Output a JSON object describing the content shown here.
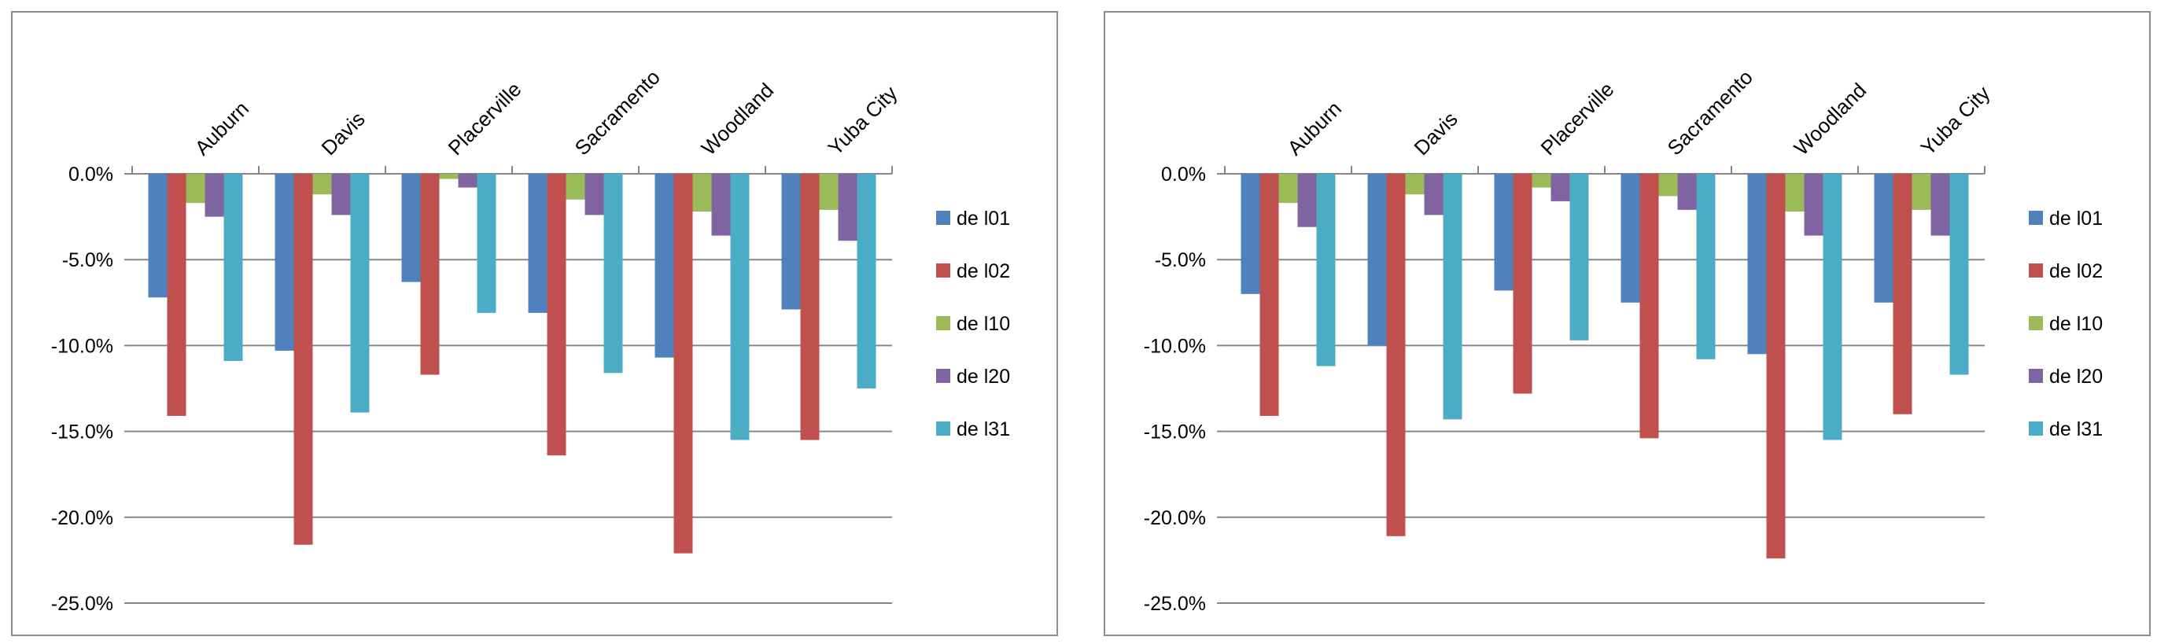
{
  "chart_data": [
    {
      "type": "bar",
      "categories": [
        "Auburn",
        "Davis",
        "Placerville",
        "Sacramento",
        "Woodland",
        "Yuba City"
      ],
      "ylim": [
        -25,
        0
      ],
      "yticks": [
        "0.0%",
        "-5.0%",
        "-10.0%",
        "-15.0%",
        "-20.0%",
        "-25.0%"
      ],
      "category_axis": "top",
      "legend_position": "right",
      "series": [
        {
          "name": "del01",
          "label": "de l01",
          "color": "#4f81bd",
          "values": [
            -7.2,
            -10.3,
            -6.3,
            -8.1,
            -10.7,
            -7.9
          ]
        },
        {
          "name": "del02",
          "label": "de l02",
          "color": "#c0504d",
          "values": [
            -14.1,
            -21.6,
            -11.7,
            -16.4,
            -22.1,
            -15.5
          ]
        },
        {
          "name": "del10",
          "label": "de l10",
          "color": "#9bbb59",
          "values": [
            -1.7,
            -1.2,
            -0.3,
            -1.5,
            -2.2,
            -2.1
          ]
        },
        {
          "name": "del20",
          "label": "de l20",
          "color": "#8064a2",
          "values": [
            -2.5,
            -2.4,
            -0.8,
            -2.4,
            -3.6,
            -3.9
          ]
        },
        {
          "name": "del31",
          "label": "de l31",
          "color": "#4bacc6",
          "values": [
            -10.9,
            -13.9,
            -8.1,
            -11.6,
            -15.5,
            -12.5
          ]
        }
      ]
    },
    {
      "type": "bar",
      "categories": [
        "Auburn",
        "Davis",
        "Placerville",
        "Sacramento",
        "Woodland",
        "Yuba City"
      ],
      "ylim": [
        -25,
        0
      ],
      "yticks": [
        "0.0%",
        "-5.0%",
        "-10.0%",
        "-15.0%",
        "-20.0%",
        "-25.0%"
      ],
      "category_axis": "top",
      "legend_position": "right",
      "series": [
        {
          "name": "del01",
          "label": "de l01",
          "color": "#4f81bd",
          "values": [
            -7.0,
            -10.0,
            -6.8,
            -7.5,
            -10.5,
            -7.5
          ]
        },
        {
          "name": "del02",
          "label": "de l02",
          "color": "#c0504d",
          "values": [
            -14.1,
            -21.1,
            -12.8,
            -15.4,
            -22.4,
            -14.0
          ]
        },
        {
          "name": "del10",
          "label": "de l10",
          "color": "#9bbb59",
          "values": [
            -1.7,
            -1.2,
            -0.8,
            -1.3,
            -2.2,
            -2.1
          ]
        },
        {
          "name": "del20",
          "label": "de l20",
          "color": "#8064a2",
          "values": [
            -3.1,
            -2.4,
            -1.6,
            -2.1,
            -3.6,
            -3.6
          ]
        },
        {
          "name": "del31",
          "label": "de l31",
          "color": "#4bacc6",
          "values": [
            -11.2,
            -14.3,
            -9.7,
            -10.8,
            -15.5,
            -11.7
          ]
        }
      ]
    }
  ]
}
